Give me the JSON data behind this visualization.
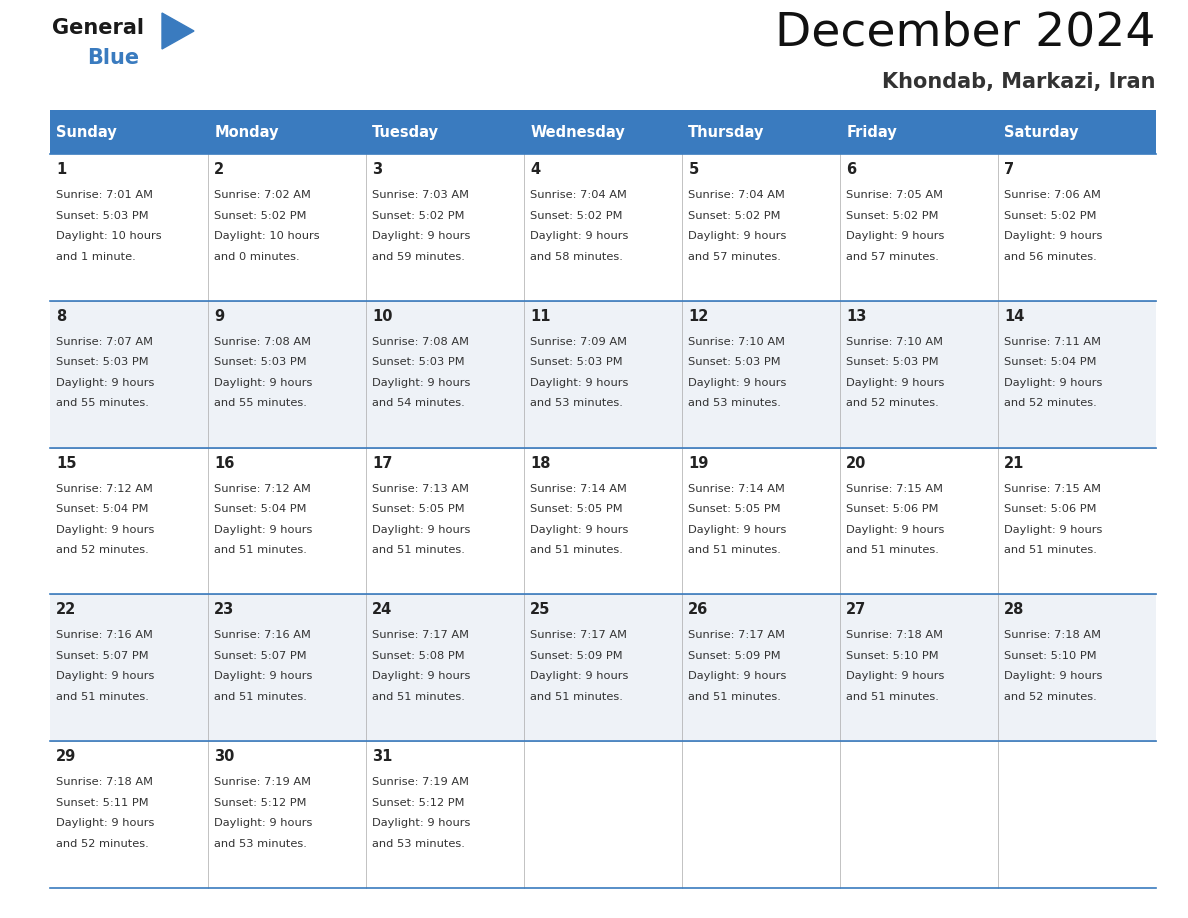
{
  "title": "December 2024",
  "subtitle": "Khondab, Markazi, Iran",
  "header_color": "#3a7bbf",
  "header_text_color": "#ffffff",
  "bg_color": "#ffffff",
  "alt_row_color": "#eef2f7",
  "border_color": "#3a7bbf",
  "cell_border_color": "#aaaaaa",
  "days_of_week": [
    "Sunday",
    "Monday",
    "Tuesday",
    "Wednesday",
    "Thursday",
    "Friday",
    "Saturday"
  ],
  "calendar_data": [
    [
      {
        "day": 1,
        "sunrise": "7:01 AM",
        "sunset": "5:03 PM",
        "daylight_hours": 10,
        "daylight_minutes": 1
      },
      {
        "day": 2,
        "sunrise": "7:02 AM",
        "sunset": "5:02 PM",
        "daylight_hours": 10,
        "daylight_minutes": 0
      },
      {
        "day": 3,
        "sunrise": "7:03 AM",
        "sunset": "5:02 PM",
        "daylight_hours": 9,
        "daylight_minutes": 59
      },
      {
        "day": 4,
        "sunrise": "7:04 AM",
        "sunset": "5:02 PM",
        "daylight_hours": 9,
        "daylight_minutes": 58
      },
      {
        "day": 5,
        "sunrise": "7:04 AM",
        "sunset": "5:02 PM",
        "daylight_hours": 9,
        "daylight_minutes": 57
      },
      {
        "day": 6,
        "sunrise": "7:05 AM",
        "sunset": "5:02 PM",
        "daylight_hours": 9,
        "daylight_minutes": 57
      },
      {
        "day": 7,
        "sunrise": "7:06 AM",
        "sunset": "5:02 PM",
        "daylight_hours": 9,
        "daylight_minutes": 56
      }
    ],
    [
      {
        "day": 8,
        "sunrise": "7:07 AM",
        "sunset": "5:03 PM",
        "daylight_hours": 9,
        "daylight_minutes": 55
      },
      {
        "day": 9,
        "sunrise": "7:08 AM",
        "sunset": "5:03 PM",
        "daylight_hours": 9,
        "daylight_minutes": 55
      },
      {
        "day": 10,
        "sunrise": "7:08 AM",
        "sunset": "5:03 PM",
        "daylight_hours": 9,
        "daylight_minutes": 54
      },
      {
        "day": 11,
        "sunrise": "7:09 AM",
        "sunset": "5:03 PM",
        "daylight_hours": 9,
        "daylight_minutes": 53
      },
      {
        "day": 12,
        "sunrise": "7:10 AM",
        "sunset": "5:03 PM",
        "daylight_hours": 9,
        "daylight_minutes": 53
      },
      {
        "day": 13,
        "sunrise": "7:10 AM",
        "sunset": "5:03 PM",
        "daylight_hours": 9,
        "daylight_minutes": 52
      },
      {
        "day": 14,
        "sunrise": "7:11 AM",
        "sunset": "5:04 PM",
        "daylight_hours": 9,
        "daylight_minutes": 52
      }
    ],
    [
      {
        "day": 15,
        "sunrise": "7:12 AM",
        "sunset": "5:04 PM",
        "daylight_hours": 9,
        "daylight_minutes": 52
      },
      {
        "day": 16,
        "sunrise": "7:12 AM",
        "sunset": "5:04 PM",
        "daylight_hours": 9,
        "daylight_minutes": 51
      },
      {
        "day": 17,
        "sunrise": "7:13 AM",
        "sunset": "5:05 PM",
        "daylight_hours": 9,
        "daylight_minutes": 51
      },
      {
        "day": 18,
        "sunrise": "7:14 AM",
        "sunset": "5:05 PM",
        "daylight_hours": 9,
        "daylight_minutes": 51
      },
      {
        "day": 19,
        "sunrise": "7:14 AM",
        "sunset": "5:05 PM",
        "daylight_hours": 9,
        "daylight_minutes": 51
      },
      {
        "day": 20,
        "sunrise": "7:15 AM",
        "sunset": "5:06 PM",
        "daylight_hours": 9,
        "daylight_minutes": 51
      },
      {
        "day": 21,
        "sunrise": "7:15 AM",
        "sunset": "5:06 PM",
        "daylight_hours": 9,
        "daylight_minutes": 51
      }
    ],
    [
      {
        "day": 22,
        "sunrise": "7:16 AM",
        "sunset": "5:07 PM",
        "daylight_hours": 9,
        "daylight_minutes": 51
      },
      {
        "day": 23,
        "sunrise": "7:16 AM",
        "sunset": "5:07 PM",
        "daylight_hours": 9,
        "daylight_minutes": 51
      },
      {
        "day": 24,
        "sunrise": "7:17 AM",
        "sunset": "5:08 PM",
        "daylight_hours": 9,
        "daylight_minutes": 51
      },
      {
        "day": 25,
        "sunrise": "7:17 AM",
        "sunset": "5:09 PM",
        "daylight_hours": 9,
        "daylight_minutes": 51
      },
      {
        "day": 26,
        "sunrise": "7:17 AM",
        "sunset": "5:09 PM",
        "daylight_hours": 9,
        "daylight_minutes": 51
      },
      {
        "day": 27,
        "sunrise": "7:18 AM",
        "sunset": "5:10 PM",
        "daylight_hours": 9,
        "daylight_minutes": 51
      },
      {
        "day": 28,
        "sunrise": "7:18 AM",
        "sunset": "5:10 PM",
        "daylight_hours": 9,
        "daylight_minutes": 52
      }
    ],
    [
      {
        "day": 29,
        "sunrise": "7:18 AM",
        "sunset": "5:11 PM",
        "daylight_hours": 9,
        "daylight_minutes": 52
      },
      {
        "day": 30,
        "sunrise": "7:19 AM",
        "sunset": "5:12 PM",
        "daylight_hours": 9,
        "daylight_minutes": 53
      },
      {
        "day": 31,
        "sunrise": "7:19 AM",
        "sunset": "5:12 PM",
        "daylight_hours": 9,
        "daylight_minutes": 53
      },
      null,
      null,
      null,
      null
    ]
  ],
  "fig_width": 11.88,
  "fig_height": 9.18,
  "dpi": 100
}
